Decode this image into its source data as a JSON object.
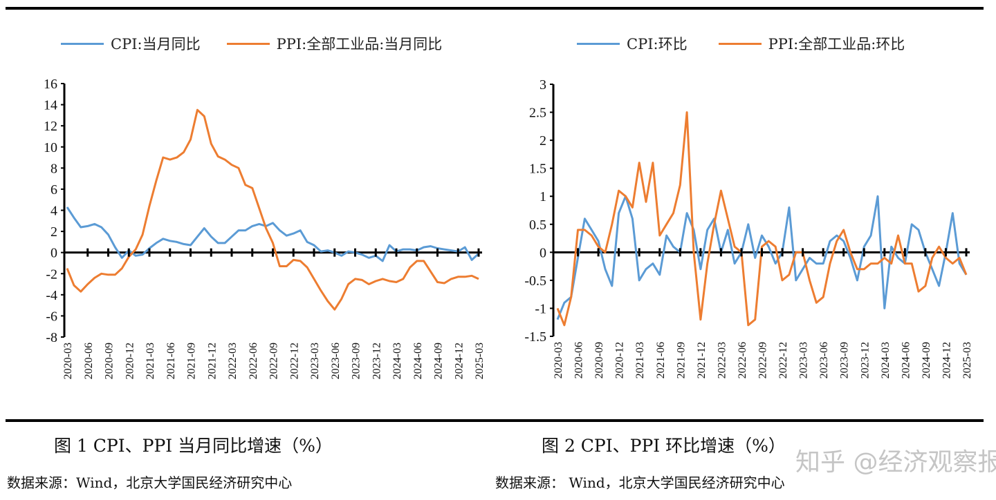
{
  "colors": {
    "cpi": "#5B9BD5",
    "ppi": "#ED7D31",
    "axis": "#000000"
  },
  "months": [
    "2020-03",
    "2020-04",
    "2020-05",
    "2020-06",
    "2020-07",
    "2020-08",
    "2020-09",
    "2020-10",
    "2020-11",
    "2020-12",
    "2021-01",
    "2021-02",
    "2021-03",
    "2021-04",
    "2021-05",
    "2021-06",
    "2021-07",
    "2021-08",
    "2021-09",
    "2021-10",
    "2021-11",
    "2021-12",
    "2022-01",
    "2022-02",
    "2022-03",
    "2022-04",
    "2022-05",
    "2022-06",
    "2022-07",
    "2022-08",
    "2022-09",
    "2022-10",
    "2022-11",
    "2022-12",
    "2023-01",
    "2023-02",
    "2023-03",
    "2023-04",
    "2023-05",
    "2023-06",
    "2023-07",
    "2023-08",
    "2023-09",
    "2023-10",
    "2023-11",
    "2023-12",
    "2024-01",
    "2024-02",
    "2024-03",
    "2024-04",
    "2024-05",
    "2024-06",
    "2024-07",
    "2024-08",
    "2024-09",
    "2024-10",
    "2024-11",
    "2024-12",
    "2025-01",
    "2025-02",
    "2025-03"
  ],
  "chart_data": [
    {
      "type": "line",
      "caption": "图 1 CPI、PPI 当月同比增速（%）",
      "source": "数据来源：Wind，北京大学国民经济研究中心",
      "ylim": [
        -8,
        16
      ],
      "yticks": [
        16,
        14,
        12,
        10,
        8,
        6,
        4,
        2,
        0,
        -2,
        -4,
        -6,
        -8
      ],
      "legend_placement": "top",
      "tick_every": 3,
      "series": [
        {
          "name": "CPI:当月同比",
          "color": "#5B9BD5",
          "values": [
            4.3,
            3.3,
            2.4,
            2.5,
            2.7,
            2.4,
            1.7,
            0.5,
            -0.5,
            0.2,
            -0.3,
            -0.2,
            0.4,
            0.9,
            1.3,
            1.1,
            1.0,
            0.8,
            0.7,
            1.5,
            2.3,
            1.5,
            0.9,
            0.9,
            1.5,
            2.1,
            2.1,
            2.5,
            2.7,
            2.5,
            2.8,
            2.1,
            1.6,
            1.8,
            2.1,
            1.0,
            0.7,
            0.1,
            0.2,
            0.0,
            -0.3,
            0.1,
            0.0,
            -0.2,
            -0.5,
            -0.3,
            -0.8,
            0.7,
            0.1,
            0.3,
            0.3,
            0.2,
            0.5,
            0.6,
            0.4,
            0.3,
            0.2,
            0.1,
            0.5,
            -0.7,
            -0.1
          ]
        },
        {
          "name": "PPI:全部工业品:当月同比",
          "color": "#ED7D31",
          "values": [
            -1.5,
            -3.1,
            -3.7,
            -3.0,
            -2.4,
            -2.0,
            -2.1,
            -2.1,
            -1.5,
            -0.4,
            0.3,
            1.7,
            4.4,
            6.8,
            9.0,
            8.8,
            9.0,
            9.5,
            10.7,
            13.5,
            12.9,
            10.3,
            9.1,
            8.8,
            8.3,
            8.0,
            6.4,
            6.1,
            4.2,
            2.3,
            0.9,
            -1.3,
            -1.3,
            -0.7,
            -0.8,
            -1.4,
            -2.5,
            -3.6,
            -4.6,
            -5.4,
            -4.4,
            -3.0,
            -2.5,
            -2.6,
            -3.0,
            -2.7,
            -2.5,
            -2.7,
            -2.8,
            -2.5,
            -1.4,
            -0.8,
            -0.8,
            -1.8,
            -2.8,
            -2.9,
            -2.5,
            -2.3,
            -2.3,
            -2.2,
            -2.5
          ]
        }
      ]
    },
    {
      "type": "line",
      "caption": "图 2 CPI、PPI 环比增速（%）",
      "source": "数据来源： Wind，北京大学国民经济研究中心",
      "ylim": [
        -1.5,
        3
      ],
      "yticks": [
        3,
        2.5,
        2,
        1.5,
        1,
        0.5,
        0,
        -0.5,
        -1,
        -1.5
      ],
      "legend_placement": "top",
      "tick_every": 3,
      "series": [
        {
          "name": "CPI:环比",
          "color": "#5B9BD5",
          "values": [
            -1.2,
            -0.9,
            -0.8,
            -0.1,
            0.6,
            0.4,
            0.2,
            -0.3,
            -0.6,
            0.7,
            1.0,
            0.6,
            -0.5,
            -0.3,
            -0.2,
            -0.4,
            0.3,
            0.1,
            0.0,
            0.7,
            0.4,
            -0.3,
            0.4,
            0.6,
            0.0,
            0.4,
            -0.2,
            0.0,
            0.5,
            -0.1,
            0.3,
            0.1,
            -0.2,
            0.0,
            0.8,
            -0.5,
            -0.3,
            -0.1,
            -0.2,
            -0.2,
            0.2,
            0.3,
            0.2,
            -0.1,
            -0.5,
            0.1,
            0.3,
            1.0,
            -1.0,
            0.1,
            -0.1,
            -0.2,
            0.5,
            0.4,
            0.0,
            -0.3,
            -0.6,
            0.0,
            0.7,
            -0.2,
            -0.4
          ]
        },
        {
          "name": "PPI:全部工业品:环比",
          "color": "#ED7D31",
          "values": [
            -1.0,
            -1.3,
            -0.8,
            0.4,
            0.4,
            0.3,
            0.1,
            0.0,
            0.5,
            1.1,
            1.0,
            0.8,
            1.6,
            0.9,
            1.6,
            0.3,
            0.5,
            0.7,
            1.2,
            2.5,
            0.0,
            -1.2,
            -0.2,
            0.5,
            1.1,
            0.6,
            0.1,
            0.0,
            -1.3,
            -1.2,
            0.1,
            0.2,
            0.1,
            -0.5,
            -0.4,
            0.0,
            0.0,
            -0.5,
            -0.9,
            -0.8,
            -0.2,
            0.2,
            0.4,
            0.0,
            -0.3,
            -0.3,
            -0.2,
            -0.2,
            -0.1,
            -0.2,
            0.3,
            -0.2,
            -0.2,
            -0.7,
            -0.6,
            -0.1,
            0.1,
            -0.1,
            -0.2,
            -0.1,
            -0.4
          ]
        }
      ]
    }
  ],
  "watermark": "知乎 @经济观察报"
}
